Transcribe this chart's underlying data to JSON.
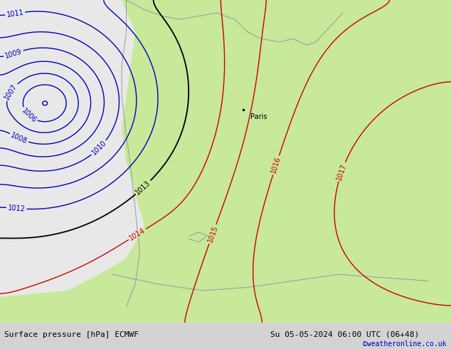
{
  "title_left": "Surface pressure [hPa] ECMWF",
  "title_right": "Su 05-05-2024 06:00 UTC (06+48)",
  "credit": "©weatheronline.co.uk",
  "bg_color": "#d3d3d3",
  "land_color": "#c8e89a",
  "sea_color": "#e8e8e8",
  "blue_color": "#0000bb",
  "black_color": "#000000",
  "red_color": "#cc0000",
  "coast_color": "#999999",
  "bar_color": "#ffffff",
  "font_size_label": 7,
  "font_size_bar": 8,
  "font_size_credit": 7
}
